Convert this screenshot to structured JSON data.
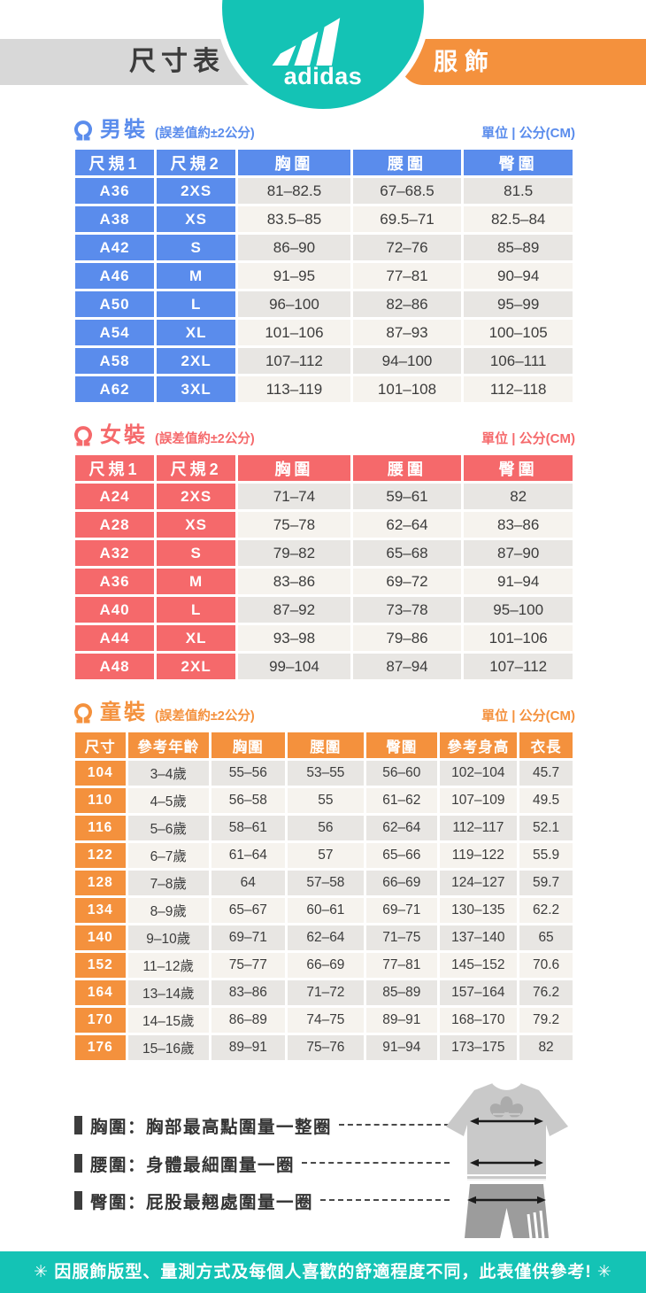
{
  "colors": {
    "teal": "#14c3b5",
    "blue": "#5a8cec",
    "red": "#f5696b",
    "orange": "#f4913d",
    "graytag": "#d8d8d8"
  },
  "header": {
    "left_tag": "尺寸表",
    "brand": "adidas",
    "right_tag": "服飾"
  },
  "common": {
    "tolerance": "(誤差值約±2公分)",
    "unit": "單位 | 公分(CM)"
  },
  "sections": {
    "men": {
      "title": "男裝",
      "table": {
        "headers": [
          "尺規1",
          "尺規2",
          "胸圍",
          "腰圍",
          "臀圍"
        ],
        "key_cols": 2,
        "rows": [
          [
            "A36",
            "2XS",
            "81–82.5",
            "67–68.5",
            "81.5"
          ],
          [
            "A38",
            "XS",
            "83.5–85",
            "69.5–71",
            "82.5–84"
          ],
          [
            "A42",
            "S",
            "86–90",
            "72–76",
            "85–89"
          ],
          [
            "A46",
            "M",
            "91–95",
            "77–81",
            "90–94"
          ],
          [
            "A50",
            "L",
            "96–100",
            "82–86",
            "95–99"
          ],
          [
            "A54",
            "XL",
            "101–106",
            "87–93",
            "100–105"
          ],
          [
            "A58",
            "2XL",
            "107–112",
            "94–100",
            "106–111"
          ],
          [
            "A62",
            "3XL",
            "113–119",
            "101–108",
            "112–118"
          ]
        ]
      }
    },
    "women": {
      "title": "女裝",
      "table": {
        "headers": [
          "尺規1",
          "尺規2",
          "胸圍",
          "腰圍",
          "臀圍"
        ],
        "key_cols": 2,
        "rows": [
          [
            "A24",
            "2XS",
            "71–74",
            "59–61",
            "82"
          ],
          [
            "A28",
            "XS",
            "75–78",
            "62–64",
            "83–86"
          ],
          [
            "A32",
            "S",
            "79–82",
            "65–68",
            "87–90"
          ],
          [
            "A36",
            "M",
            "83–86",
            "69–72",
            "91–94"
          ],
          [
            "A40",
            "L",
            "87–92",
            "73–78",
            "95–100"
          ],
          [
            "A44",
            "XL",
            "93–98",
            "79–86",
            "101–106"
          ],
          [
            "A48",
            "2XL",
            "99–104",
            "87–94",
            "107–112"
          ]
        ]
      }
    },
    "kids": {
      "title": "童裝",
      "table": {
        "headers": [
          "尺寸",
          "參考年齡",
          "胸圍",
          "腰圍",
          "臀圍",
          "參考身高",
          "衣長"
        ],
        "key_cols": 1,
        "rows": [
          [
            "104",
            "3–4歲",
            "55–56",
            "53–55",
            "56–60",
            "102–104",
            "45.7"
          ],
          [
            "110",
            "4–5歲",
            "56–58",
            "55",
            "61–62",
            "107–109",
            "49.5"
          ],
          [
            "116",
            "5–6歲",
            "58–61",
            "56",
            "62–64",
            "112–117",
            "52.1"
          ],
          [
            "122",
            "6–7歲",
            "61–64",
            "57",
            "65–66",
            "119–122",
            "55.9"
          ],
          [
            "128",
            "7–8歲",
            "64",
            "57–58",
            "66–69",
            "124–127",
            "59.7"
          ],
          [
            "134",
            "8–9歲",
            "65–67",
            "60–61",
            "69–71",
            "130–135",
            "62.2"
          ],
          [
            "140",
            "9–10歲",
            "69–71",
            "62–64",
            "71–75",
            "137–140",
            "65"
          ],
          [
            "152",
            "11–12歲",
            "75–77",
            "66–69",
            "77–81",
            "145–152",
            "70.6"
          ],
          [
            "164",
            "13–14歲",
            "83–86",
            "71–72",
            "85–89",
            "157–164",
            "76.2"
          ],
          [
            "170",
            "14–15歲",
            "86–89",
            "74–75",
            "89–91",
            "168–170",
            "79.2"
          ],
          [
            "176",
            "15–16歲",
            "89–91",
            "75–76",
            "91–94",
            "173–175",
            "82"
          ]
        ]
      }
    }
  },
  "legend": {
    "items": [
      {
        "text": "胸圍：胸部最高點圍量一整圈"
      },
      {
        "text": "腰圍：身體最細圍量一圈"
      },
      {
        "text": "臀圍：屁股最翹處圍量一圈"
      }
    ]
  },
  "footer": {
    "note": "✳ 因服飾版型、量測方式及每個人喜歡的舒適程度不同，此表僅供參考! ✳"
  }
}
